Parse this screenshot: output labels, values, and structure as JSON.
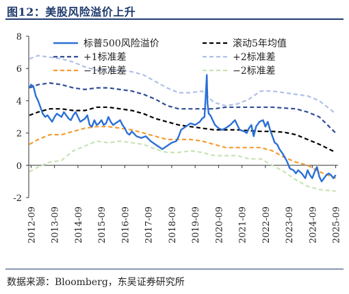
{
  "header": {
    "title": "图12：美股风险溢价上升"
  },
  "footer": {
    "source": "数据来源：Bloomberg，东吴证券研究所"
  },
  "chart_data": {
    "type": "line",
    "title": "图12：美股风险溢价上升",
    "xlabel": "",
    "ylabel": "",
    "xlim": [
      2012.6,
      2025.8
    ],
    "ylim": [
      -2,
      8
    ],
    "yticks": [
      -2,
      0,
      2,
      4,
      6,
      8
    ],
    "xtick_labels": [
      "2012-09",
      "2013-09",
      "2014-09",
      "2015-09",
      "2016-09",
      "2017-09",
      "2018-09",
      "2019-09",
      "2020-09",
      "2021-09",
      "2022-09",
      "2023-09",
      "2024-09",
      "2025-09"
    ],
    "grid": false,
    "legend_position": "top",
    "colors": {
      "erp": "#2a6fd6",
      "ma": "#000000",
      "p1": "#2e4a96",
      "p2": "#aebfe8",
      "m1": "#f59a2e",
      "m2": "#c7e3b4"
    },
    "series": [
      {
        "name": "标普500风险溢价",
        "key": "erp",
        "style": "solid",
        "x": [
          2012.63,
          2012.7,
          2012.8,
          2012.9,
          2013.0,
          2013.1,
          2013.2,
          2013.3,
          2013.4,
          2013.5,
          2013.6,
          2013.7,
          2013.8,
          2013.9,
          2014.0,
          2014.1,
          2014.2,
          2014.3,
          2014.4,
          2014.5,
          2014.6,
          2014.7,
          2014.8,
          2014.9,
          2015.0,
          2015.1,
          2015.2,
          2015.3,
          2015.4,
          2015.5,
          2015.6,
          2015.7,
          2015.8,
          2015.9,
          2016.0,
          2016.1,
          2016.2,
          2016.3,
          2016.4,
          2016.5,
          2016.6,
          2016.7,
          2016.8,
          2016.9,
          2017.0,
          2017.2,
          2017.4,
          2017.6,
          2017.8,
          2018.0,
          2018.1,
          2018.2,
          2018.3,
          2018.5,
          2018.7,
          2018.9,
          2019.0,
          2019.1,
          2019.3,
          2019.5,
          2019.7,
          2019.9,
          2020.0,
          2020.1,
          2020.15,
          2020.2,
          2020.23,
          2020.28,
          2020.35,
          2020.45,
          2020.55,
          2020.7,
          2020.85,
          2021.0,
          2021.2,
          2021.4,
          2021.6,
          2021.8,
          2021.9,
          2022.0,
          2022.1,
          2022.2,
          2022.3,
          2022.45,
          2022.6,
          2022.7,
          2022.8,
          2022.9,
          2023.0,
          2023.1,
          2023.2,
          2023.3,
          2023.45,
          2023.6,
          2023.75,
          2023.9,
          2024.0,
          2024.1,
          2024.25,
          2024.4,
          2024.5,
          2024.6,
          2024.7,
          2024.8,
          2024.9,
          2025.0,
          2025.1,
          2025.2,
          2025.3,
          2025.4,
          2025.5,
          2025.6,
          2025.7
        ],
        "y": [
          4.8,
          5.0,
          4.9,
          4.3,
          4.0,
          3.6,
          3.2,
          3.0,
          3.1,
          2.9,
          2.7,
          3.0,
          3.2,
          3.1,
          3.0,
          3.3,
          3.1,
          2.9,
          2.8,
          3.1,
          3.3,
          3.0,
          2.7,
          2.8,
          2.9,
          3.1,
          2.5,
          2.4,
          2.8,
          2.5,
          2.6,
          2.8,
          2.5,
          2.6,
          3.0,
          2.7,
          2.5,
          2.6,
          2.7,
          2.8,
          2.5,
          2.3,
          2.0,
          1.9,
          2.1,
          1.8,
          1.7,
          1.8,
          1.5,
          1.3,
          1.2,
          1.1,
          1.0,
          1.2,
          1.4,
          1.5,
          1.8,
          2.2,
          2.4,
          2.6,
          2.5,
          2.7,
          2.9,
          3.0,
          4.2,
          5.6,
          3.8,
          3.2,
          3.1,
          2.8,
          2.5,
          2.3,
          2.2,
          2.3,
          2.5,
          2.8,
          2.2,
          2.1,
          2.0,
          2.3,
          2.5,
          1.8,
          2.4,
          2.7,
          2.8,
          2.4,
          2.7,
          2.2,
          1.8,
          1.4,
          1.3,
          1.0,
          0.7,
          0.3,
          -0.2,
          -0.3,
          -0.5,
          -0.3,
          -0.5,
          -0.8,
          -0.3,
          -0.6,
          -0.8,
          -0.4,
          -0.1,
          -0.7,
          -1.0,
          -0.8,
          -0.6,
          -0.5,
          -0.6,
          -0.8,
          -0.6
        ]
      },
      {
        "name": "滚动5年均值",
        "key": "ma",
        "style": "dash",
        "x": [
          2012.63,
          2013.0,
          2013.5,
          2014.0,
          2014.5,
          2015.0,
          2015.5,
          2016.0,
          2016.5,
          2017.0,
          2017.5,
          2018.0,
          2018.5,
          2019.0,
          2019.5,
          2020.0,
          2020.5,
          2021.0,
          2021.5,
          2022.0,
          2022.5,
          2023.0,
          2023.5,
          2024.0,
          2024.5,
          2025.0,
          2025.7
        ],
        "y": [
          3.1,
          3.3,
          3.5,
          3.5,
          3.4,
          3.4,
          3.6,
          3.6,
          3.5,
          3.4,
          3.2,
          2.9,
          2.7,
          2.5,
          2.4,
          2.3,
          2.2,
          2.2,
          2.2,
          2.15,
          2.1,
          2.1,
          2.05,
          1.9,
          1.6,
          1.3,
          0.8
        ]
      },
      {
        "name": "+1标准差",
        "key": "p1",
        "style": "dash",
        "x": [
          2012.63,
          2013.0,
          2013.5,
          2014.0,
          2014.5,
          2015.0,
          2015.5,
          2016.0,
          2016.5,
          2017.0,
          2017.5,
          2018.0,
          2018.5,
          2019.0,
          2019.5,
          2020.0,
          2020.5,
          2021.0,
          2021.5,
          2022.0,
          2022.5,
          2023.0,
          2023.5,
          2024.0,
          2024.5,
          2025.0,
          2025.7
        ],
        "y": [
          4.8,
          5.0,
          5.1,
          5.0,
          4.8,
          4.7,
          4.8,
          4.8,
          4.7,
          4.6,
          4.4,
          4.1,
          3.7,
          3.5,
          3.5,
          3.5,
          3.5,
          3.6,
          3.6,
          3.6,
          3.6,
          3.6,
          3.55,
          3.5,
          3.3,
          3.0,
          2.0
        ]
      },
      {
        "name": "+2标准差",
        "key": "p2",
        "style": "dash",
        "x": [
          2012.63,
          2013.0,
          2013.5,
          2014.0,
          2014.5,
          2015.0,
          2015.5,
          2016.0,
          2016.5,
          2017.0,
          2017.5,
          2018.0,
          2018.5,
          2019.0,
          2019.5,
          2020.0,
          2020.5,
          2021.0,
          2021.5,
          2022.0,
          2022.5,
          2023.0,
          2023.5,
          2024.0,
          2024.5,
          2025.0,
          2025.7
        ],
        "y": [
          6.6,
          6.8,
          6.7,
          6.6,
          6.4,
          6.1,
          5.9,
          5.9,
          5.9,
          5.8,
          5.6,
          5.2,
          4.8,
          4.5,
          4.5,
          4.6,
          3.9,
          3.7,
          3.8,
          4.1,
          4.6,
          4.6,
          4.5,
          4.4,
          4.3,
          4.0,
          3.2
        ]
      },
      {
        "name": "−1标准差",
        "key": "m1",
        "style": "dash",
        "x": [
          2012.63,
          2013.0,
          2013.5,
          2014.0,
          2014.5,
          2015.0,
          2015.5,
          2016.0,
          2016.5,
          2017.0,
          2017.5,
          2018.0,
          2018.5,
          2019.0,
          2019.5,
          2020.0,
          2020.5,
          2021.0,
          2021.5,
          2022.0,
          2022.5,
          2023.0,
          2023.5,
          2024.0,
          2024.5,
          2025.0,
          2025.7
        ],
        "y": [
          1.3,
          1.6,
          1.9,
          1.9,
          2.1,
          2.3,
          2.4,
          2.4,
          2.3,
          2.2,
          2.0,
          1.8,
          1.6,
          1.6,
          1.6,
          1.5,
          1.3,
          1.1,
          1.1,
          1.1,
          1.1,
          0.9,
          0.5,
          0.2,
          0.0,
          -0.4,
          -0.8
        ]
      },
      {
        "name": "−2标准差",
        "key": "m2",
        "style": "dash",
        "x": [
          2012.63,
          2013.0,
          2013.5,
          2014.0,
          2014.5,
          2015.0,
          2015.5,
          2016.0,
          2016.5,
          2017.0,
          2017.5,
          2018.0,
          2018.5,
          2019.0,
          2019.5,
          2020.0,
          2020.5,
          2021.0,
          2021.5,
          2022.0,
          2022.5,
          2023.0,
          2023.5,
          2024.0,
          2024.5,
          2025.0,
          2025.7
        ],
        "y": [
          -0.4,
          -0.1,
          0.2,
          0.3,
          0.9,
          1.2,
          1.5,
          1.4,
          1.5,
          1.4,
          1.3,
          1.0,
          0.8,
          0.8,
          0.9,
          0.8,
          0.6,
          0.6,
          0.6,
          0.4,
          0.4,
          0.0,
          -0.4,
          -0.9,
          -1.3,
          -1.5,
          -1.6
        ]
      }
    ]
  }
}
